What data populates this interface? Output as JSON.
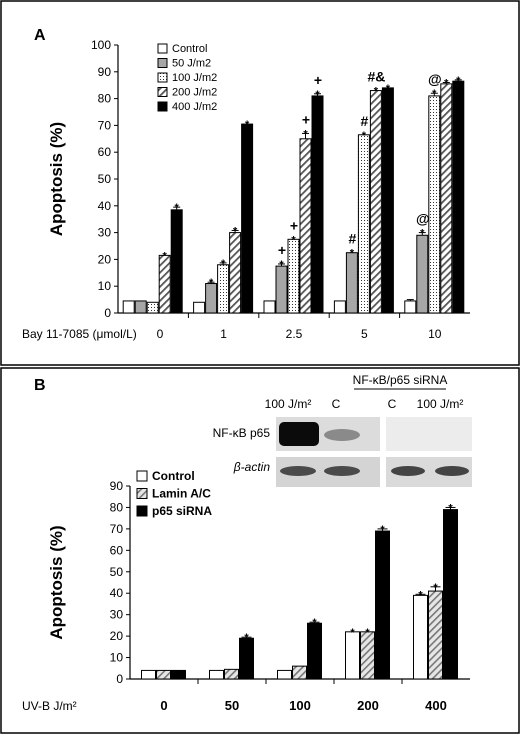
{
  "panel_a_label": "A",
  "panel_b_label": "B",
  "blot": {
    "header_siRNA": "NF-κB/p65 siRNA",
    "lane_labels": [
      "100 J/m²",
      "C",
      "C",
      "100 J/m²"
    ],
    "row_labels": [
      "NF-κB p65",
      "β-actin"
    ]
  },
  "chart_data": [
    {
      "type": "bar",
      "panel": "A",
      "ylabel": "Apoptosis (%)",
      "xlabel": "Bay 11-7085 (μmol/L)",
      "ylim": [
        0,
        100
      ],
      "yticks": [
        0,
        10,
        20,
        30,
        40,
        50,
        60,
        70,
        80,
        90,
        100
      ],
      "legend_position": "top-left",
      "categories": [
        "0",
        "1",
        "2.5",
        "5",
        "10"
      ],
      "series": [
        {
          "name": "Control",
          "color": "#ffffff",
          "pattern": "none",
          "values": [
            4.5,
            4,
            4.5,
            4.5,
            4.5
          ],
          "errors": [
            0,
            0,
            0,
            0,
            0.5
          ],
          "markers": [
            "",
            "",
            "",
            "",
            ""
          ]
        },
        {
          "name": "50 J/m2",
          "color": "#a6a6a6",
          "pattern": "solid",
          "values": [
            4.5,
            11,
            17.5,
            22.5,
            29
          ],
          "errors": [
            0,
            0.5,
            0.8,
            0,
            1
          ],
          "markers": [
            "",
            "*",
            "*",
            "*",
            "*"
          ]
        },
        {
          "name": "100 J/m2",
          "color": "#ffffff",
          "pattern": "dots",
          "values": [
            4,
            18,
            27.5,
            66.5,
            81
          ],
          "errors": [
            0,
            0.7,
            0,
            0,
            1
          ],
          "markers": [
            "",
            "*",
            "*",
            "*",
            "*"
          ]
        },
        {
          "name": "200 J/m2",
          "color": "#ffffff",
          "pattern": "diagonal",
          "values": [
            21.5,
            30,
            65,
            83,
            85.5
          ],
          "errors": [
            0,
            0.8,
            2,
            0,
            0.5
          ],
          "markers": [
            "*",
            "*",
            "*",
            "*",
            "*"
          ]
        },
        {
          "name": "400 J/m2",
          "color": "#000000",
          "pattern": "solid",
          "values": [
            38.5,
            70.5,
            81,
            84,
            86.5
          ],
          "errors": [
            1,
            0,
            0.8,
            0,
            0.5
          ],
          "markers": [
            "*",
            "*",
            "*",
            "*",
            "*"
          ]
        }
      ],
      "annotations": [
        {
          "text": "+",
          "category": "2.5",
          "series": "50 J/m2"
        },
        {
          "text": "+",
          "category": "2.5",
          "series": "100 J/m2"
        },
        {
          "text": "+",
          "category": "2.5",
          "series": "200 J/m2"
        },
        {
          "text": "+",
          "category": "2.5",
          "series": "400 J/m2"
        },
        {
          "text": "#",
          "category": "5",
          "series": "50 J/m2"
        },
        {
          "text": "#",
          "category": "5",
          "series": "100 J/m2"
        },
        {
          "text": "#&",
          "category": "5",
          "series": "200 J/m2"
        },
        {
          "text": "@",
          "category": "10",
          "series": "50 J/m2"
        },
        {
          "text": "@",
          "category": "10",
          "series": "100 J/m2"
        }
      ]
    },
    {
      "type": "bar",
      "panel": "B",
      "ylabel": "Apoptosis (%)",
      "xlabel": "UV-B J/m²",
      "ylim": [
        0,
        90
      ],
      "yticks": [
        0,
        10,
        20,
        30,
        40,
        50,
        60,
        70,
        80,
        90
      ],
      "legend_position": "top-left",
      "categories": [
        "0",
        "50",
        "100",
        "200",
        "400"
      ],
      "series": [
        {
          "name": "Control",
          "color": "#ffffff",
          "pattern": "none",
          "values": [
            4,
            4,
            4,
            22,
            39
          ],
          "errors": [
            0,
            0,
            0,
            0,
            0.5
          ],
          "markers": [
            "",
            "",
            "",
            "*",
            "*"
          ]
        },
        {
          "name": "Lamin A/C",
          "color": "#d9d9d9",
          "pattern": "diagonal",
          "values": [
            4,
            4.5,
            6,
            22,
            41
          ],
          "errors": [
            0,
            0,
            0,
            0,
            2
          ],
          "markers": [
            "",
            "",
            "",
            "*",
            "*"
          ]
        },
        {
          "name": "p65 siRNA",
          "color": "#000000",
          "pattern": "solid",
          "values": [
            4,
            19,
            26,
            69,
            79
          ],
          "errors": [
            0,
            0.5,
            0.5,
            1,
            1
          ],
          "markers": [
            "",
            "*",
            "*",
            "*",
            "*"
          ]
        }
      ]
    }
  ]
}
